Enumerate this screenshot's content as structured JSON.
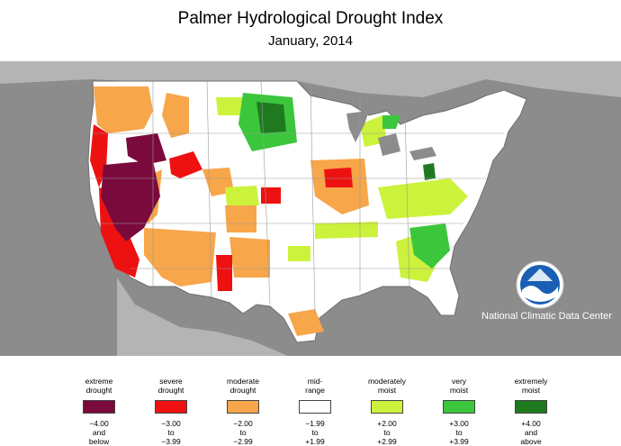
{
  "header": {
    "title": "Palmer Hydrological Drought Index",
    "subtitle": "January, 2014"
  },
  "credit": "National Climatic Data Center",
  "colors": {
    "background": "#8c8c8c",
    "land": "#ffffff",
    "border": "#6e6e6e",
    "lakes": "#8c8c8c"
  },
  "legend": [
    {
      "label_1": "extreme",
      "label_2": "drought",
      "color": "#7a0a3c",
      "range_1": "−4.00",
      "range_2": "and",
      "range_3": "below"
    },
    {
      "label_1": "severe",
      "label_2": "drought",
      "color": "#ee1111",
      "range_1": "−3.00",
      "range_2": "to",
      "range_3": "−3.99"
    },
    {
      "label_1": "moderate",
      "label_2": "drought",
      "color": "#f7a64a",
      "range_1": "−2.00",
      "range_2": "to",
      "range_3": "−2.99"
    },
    {
      "label_1": "mid-",
      "label_2": "range",
      "color": "#ffffff",
      "range_1": "−1.99",
      "range_2": "to",
      "range_3": "+1.99"
    },
    {
      "label_1": "moderately",
      "label_2": "moist",
      "color": "#ccf23c",
      "range_1": "+2.00",
      "range_2": "to",
      "range_3": "+2.99"
    },
    {
      "label_1": "very",
      "label_2": "moist",
      "color": "#3cc63c",
      "range_1": "+3.00",
      "range_2": "to",
      "range_3": "+3.99"
    },
    {
      "label_1": "extremely",
      "label_2": "moist",
      "color": "#1f7a1f",
      "range_1": "+4.00",
      "range_2": "and",
      "range_3": "above"
    }
  ]
}
